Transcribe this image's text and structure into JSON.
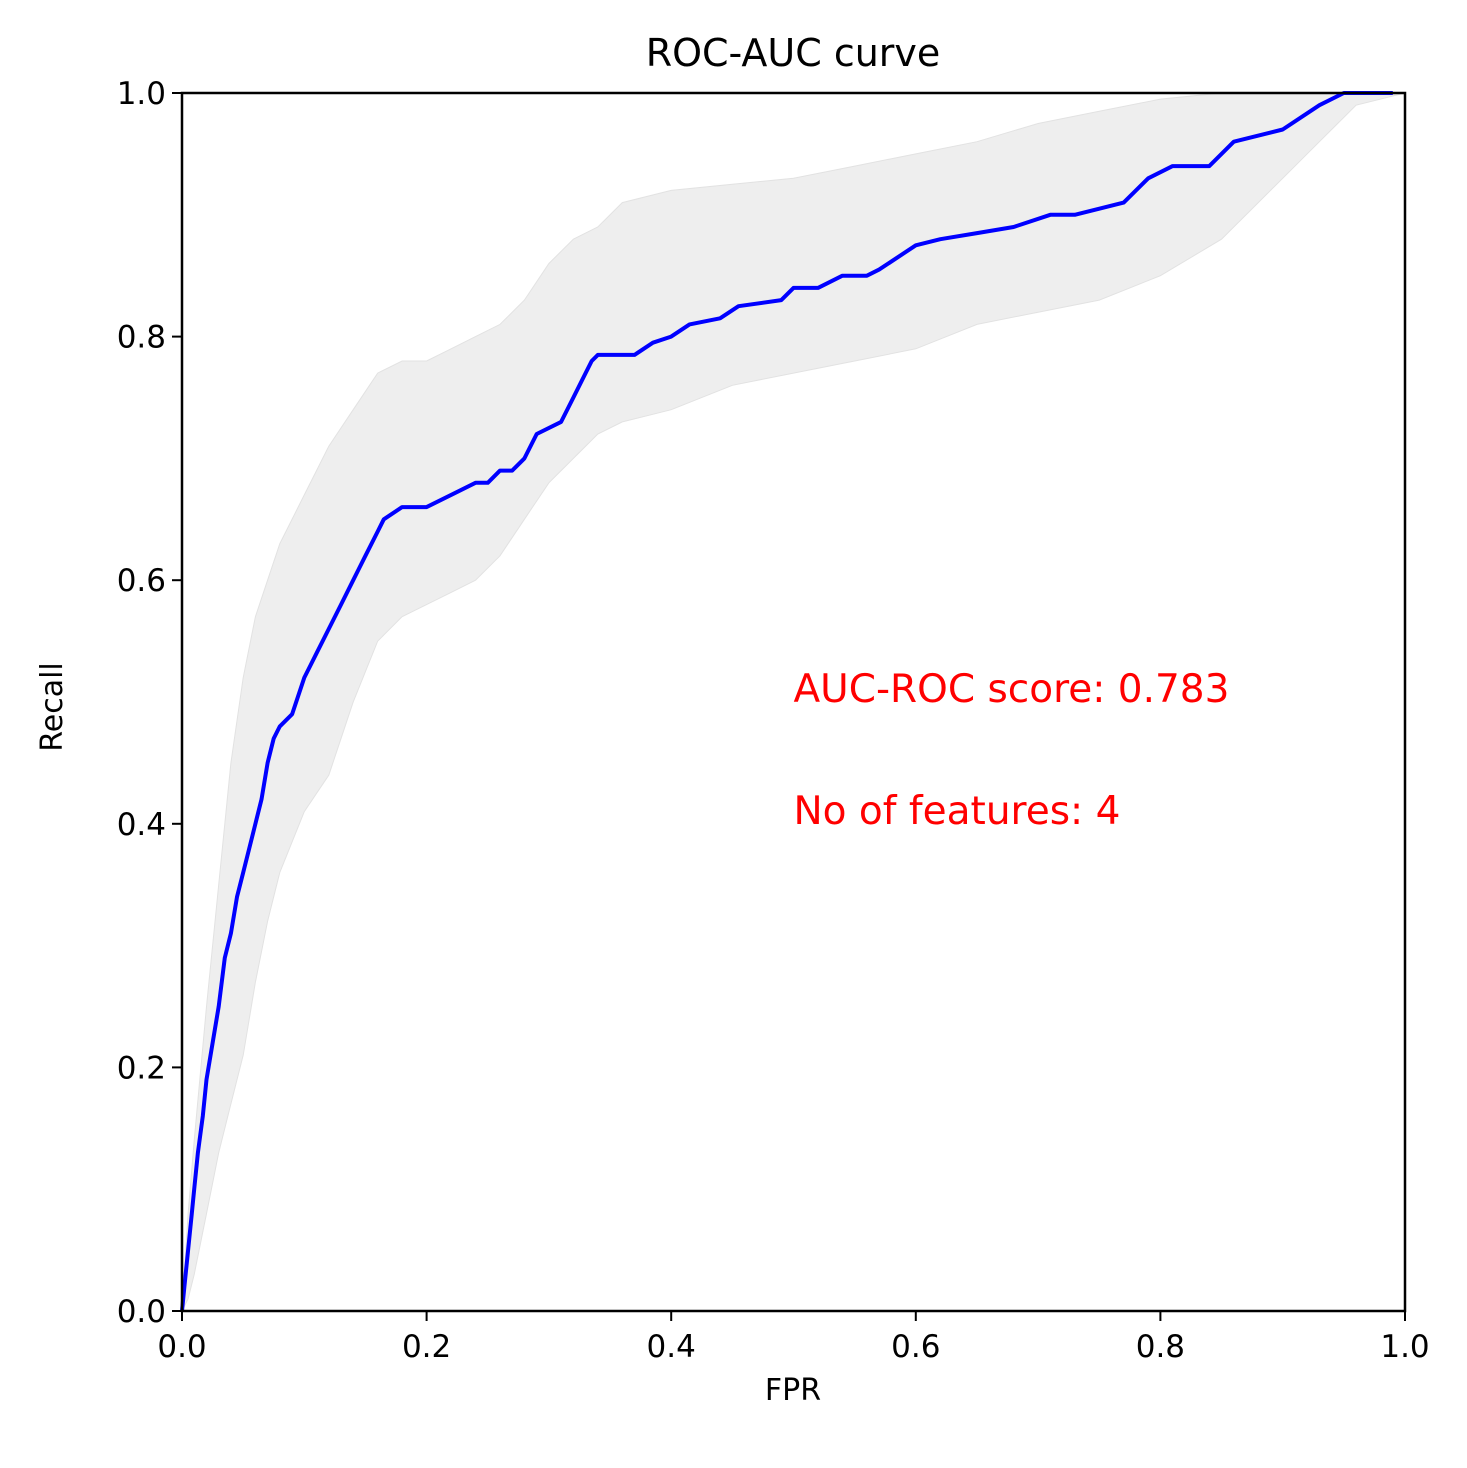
{
  "chart_data": {
    "type": "line",
    "title": "ROC-AUC curve",
    "xlabel": "FPR",
    "ylabel": "Recall",
    "xlim": [
      0,
      1
    ],
    "ylim": [
      0,
      1
    ],
    "xticks": [
      "0.0",
      "0.2",
      "0.4",
      "0.6",
      "0.8",
      "1.0"
    ],
    "yticks": [
      "0.0",
      "0.2",
      "0.4",
      "0.6",
      "0.8",
      "1.0"
    ],
    "grid": false,
    "annotations": [
      {
        "text": "AUC-ROC score: 0.783",
        "x": 0.5,
        "y": 0.5,
        "color": "#ff0000"
      },
      {
        "text": "No of features: 4",
        "x": 0.5,
        "y": 0.4,
        "color": "#ff0000"
      }
    ],
    "series": [
      {
        "kind": "line",
        "color": "#0000ff",
        "x": [
          0.0,
          0.002,
          0.005,
          0.008,
          0.01,
          0.013,
          0.017,
          0.02,
          0.025,
          0.03,
          0.035,
          0.04,
          0.045,
          0.05,
          0.055,
          0.06,
          0.065,
          0.07,
          0.075,
          0.08,
          0.09,
          0.1,
          0.105,
          0.11,
          0.12,
          0.13,
          0.14,
          0.145,
          0.15,
          0.16,
          0.165,
          0.18,
          0.2,
          0.22,
          0.24,
          0.25,
          0.26,
          0.27,
          0.28,
          0.29,
          0.31,
          0.32,
          0.33,
          0.335,
          0.34,
          0.37,
          0.385,
          0.4,
          0.415,
          0.44,
          0.455,
          0.49,
          0.5,
          0.52,
          0.54,
          0.56,
          0.57,
          0.6,
          0.62,
          0.65,
          0.68,
          0.71,
          0.73,
          0.75,
          0.77,
          0.79,
          0.81,
          0.84,
          0.86,
          0.9,
          0.93,
          0.95,
          0.99
        ],
        "y": [
          0.0,
          0.02,
          0.05,
          0.08,
          0.1,
          0.13,
          0.16,
          0.19,
          0.22,
          0.25,
          0.29,
          0.31,
          0.34,
          0.36,
          0.38,
          0.4,
          0.42,
          0.45,
          0.47,
          0.48,
          0.49,
          0.52,
          0.53,
          0.54,
          0.56,
          0.58,
          0.6,
          0.61,
          0.62,
          0.64,
          0.65,
          0.66,
          0.66,
          0.67,
          0.68,
          0.68,
          0.69,
          0.69,
          0.7,
          0.72,
          0.73,
          0.75,
          0.77,
          0.78,
          0.785,
          0.785,
          0.795,
          0.8,
          0.81,
          0.815,
          0.825,
          0.83,
          0.84,
          0.84,
          0.85,
          0.85,
          0.855,
          0.875,
          0.88,
          0.885,
          0.89,
          0.9,
          0.9,
          0.905,
          0.91,
          0.93,
          0.94,
          0.94,
          0.96,
          0.97,
          0.99,
          1.0,
          1.0
        ]
      },
      {
        "kind": "band",
        "color": "#eeeeee",
        "x": [
          0.0,
          0.005,
          0.01,
          0.02,
          0.03,
          0.04,
          0.05,
          0.06,
          0.07,
          0.08,
          0.1,
          0.12,
          0.14,
          0.16,
          0.18,
          0.2,
          0.22,
          0.24,
          0.26,
          0.28,
          0.3,
          0.32,
          0.34,
          0.36,
          0.4,
          0.45,
          0.5,
          0.55,
          0.6,
          0.65,
          0.7,
          0.75,
          0.8,
          0.85,
          0.9,
          0.93,
          0.96,
          1.0
        ],
        "upper": [
          0.0,
          0.08,
          0.14,
          0.25,
          0.35,
          0.45,
          0.52,
          0.57,
          0.6,
          0.63,
          0.67,
          0.71,
          0.74,
          0.77,
          0.78,
          0.78,
          0.79,
          0.8,
          0.81,
          0.83,
          0.86,
          0.88,
          0.89,
          0.91,
          0.92,
          0.925,
          0.93,
          0.94,
          0.95,
          0.96,
          0.975,
          0.985,
          0.995,
          1.0,
          1.0,
          1.0,
          1.0,
          1.0
        ],
        "lower": [
          0.0,
          0.01,
          0.03,
          0.08,
          0.13,
          0.17,
          0.21,
          0.27,
          0.32,
          0.36,
          0.41,
          0.44,
          0.5,
          0.55,
          0.57,
          0.58,
          0.59,
          0.6,
          0.62,
          0.65,
          0.68,
          0.7,
          0.72,
          0.73,
          0.74,
          0.76,
          0.77,
          0.78,
          0.79,
          0.81,
          0.82,
          0.83,
          0.85,
          0.88,
          0.93,
          0.96,
          0.99,
          1.0
        ]
      }
    ]
  }
}
